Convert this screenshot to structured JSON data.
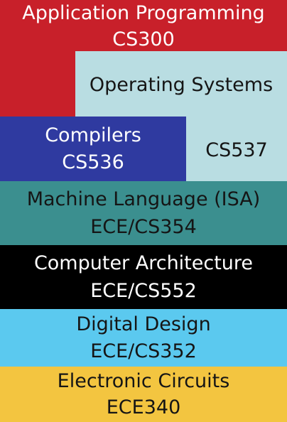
{
  "layers": {
    "application": {
      "title": "Application Programming",
      "code": "CS300",
      "color": "#c8202a"
    },
    "operating_systems": {
      "title": "Operating Systems",
      "code": "CS537",
      "color": "#b9dde2"
    },
    "compilers": {
      "title": "Compilers",
      "code": "CS536",
      "color": "#2f3aa0"
    },
    "machine_language": {
      "title": "Machine Language (ISA)",
      "code": "ECE/CS354",
      "color": "#3b8f8f"
    },
    "computer_architecture": {
      "title": "Computer Architecture",
      "code": "ECE/CS552",
      "color": "#000000"
    },
    "digital_design": {
      "title": "Digital Design",
      "code": "ECE/CS352",
      "color": "#5bc9ef"
    },
    "electronic_circuits": {
      "title": "Electronic Circuits",
      "code": "ECE340",
      "color": "#f3c540"
    }
  }
}
